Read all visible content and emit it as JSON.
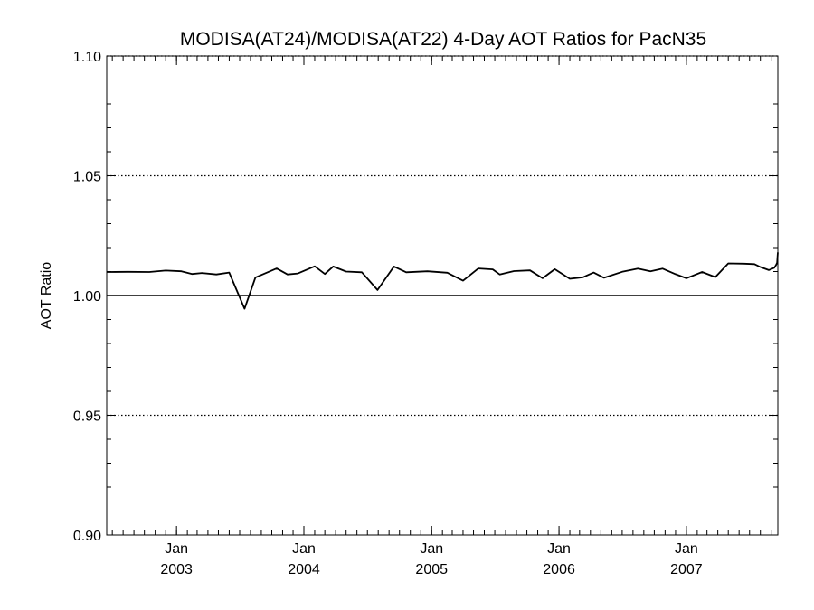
{
  "chart_data": {
    "type": "line",
    "title": "MODISA(AT24)/MODISA(AT22) 4-Day AOT Ratios for PacN35",
    "xlabel": "",
    "ylabel": "AOT Ratio",
    "xlim": [
      "2002-06-15",
      "2007-09-20"
    ],
    "ylim": [
      0.9,
      1.1
    ],
    "y_ticks": [
      "0.90",
      "0.95",
      "1.00",
      "1.05",
      "1.10"
    ],
    "y_tick_values": [
      0.9,
      0.95,
      1.0,
      1.05,
      1.1
    ],
    "y_gridlines": [
      0.95,
      1.05,
      1.1
    ],
    "y_gridline_style": "dotted",
    "reference_line": 1.0,
    "x_ticks": [
      {
        "date": "2003-01-01",
        "month": "Jan",
        "year": "2003"
      },
      {
        "date": "2004-01-01",
        "month": "Jan",
        "year": "2004"
      },
      {
        "date": "2005-01-01",
        "month": "Jan",
        "year": "2005"
      },
      {
        "date": "2006-01-01",
        "month": "Jan",
        "year": "2006"
      },
      {
        "date": "2007-01-01",
        "month": "Jan",
        "year": "2007"
      }
    ],
    "x_minor_ticks": "monthly",
    "grid": true,
    "legend": "none",
    "series": [
      {
        "color": "#000000",
        "points": [
          [
            "2002-06-15",
            1.0098
          ],
          [
            "2002-08-15",
            1.0099
          ],
          [
            "2002-10-15",
            1.0098
          ],
          [
            "2002-12-01",
            1.0104
          ],
          [
            "2003-01-15",
            1.0101
          ],
          [
            "2003-02-15",
            1.009
          ],
          [
            "2003-03-15",
            1.0094
          ],
          [
            "2003-04-25",
            1.0088
          ],
          [
            "2003-06-01",
            1.0096
          ],
          [
            "2003-07-15",
            0.9945
          ],
          [
            "2003-08-15",
            1.0075
          ],
          [
            "2003-10-15",
            1.0113
          ],
          [
            "2003-11-15",
            1.0088
          ],
          [
            "2003-12-15",
            1.0092
          ],
          [
            "2004-02-01",
            1.0122
          ],
          [
            "2004-03-01",
            1.009
          ],
          [
            "2004-03-25",
            1.0121
          ],
          [
            "2004-05-01",
            1.01
          ],
          [
            "2004-06-15",
            1.0097
          ],
          [
            "2004-07-30",
            1.0023
          ],
          [
            "2004-09-15",
            1.0121
          ],
          [
            "2004-10-20",
            1.0097
          ],
          [
            "2004-12-20",
            1.0101
          ],
          [
            "2005-02-15",
            1.0095
          ],
          [
            "2005-04-01",
            1.0062
          ],
          [
            "2005-05-15",
            1.0113
          ],
          [
            "2005-06-25",
            1.0109
          ],
          [
            "2005-07-15",
            1.0088
          ],
          [
            "2005-08-25",
            1.0102
          ],
          [
            "2005-10-10",
            1.0105
          ],
          [
            "2005-11-15",
            1.0072
          ],
          [
            "2005-12-20",
            1.011
          ],
          [
            "2006-02-01",
            1.007
          ],
          [
            "2006-03-10",
            1.0076
          ],
          [
            "2006-04-10",
            1.0096
          ],
          [
            "2006-05-10",
            1.0074
          ],
          [
            "2006-07-01",
            1.0099
          ],
          [
            "2006-08-15",
            1.0112
          ],
          [
            "2006-09-20",
            1.0101
          ],
          [
            "2006-10-25",
            1.0112
          ],
          [
            "2006-12-01",
            1.0089
          ],
          [
            "2007-01-01",
            1.0072
          ],
          [
            "2007-02-15",
            1.0098
          ],
          [
            "2007-03-25",
            1.0077
          ],
          [
            "2007-05-01",
            1.0134
          ],
          [
            "2007-06-15",
            1.0133
          ],
          [
            "2007-07-15",
            1.0131
          ],
          [
            "2007-08-01",
            1.0119
          ],
          [
            "2007-08-25",
            1.0106
          ],
          [
            "2007-09-10",
            1.0116
          ],
          [
            "2007-09-15",
            1.0128
          ],
          [
            "2007-09-18",
            1.0137
          ],
          [
            "2007-09-20",
            1.018
          ]
        ]
      }
    ]
  }
}
